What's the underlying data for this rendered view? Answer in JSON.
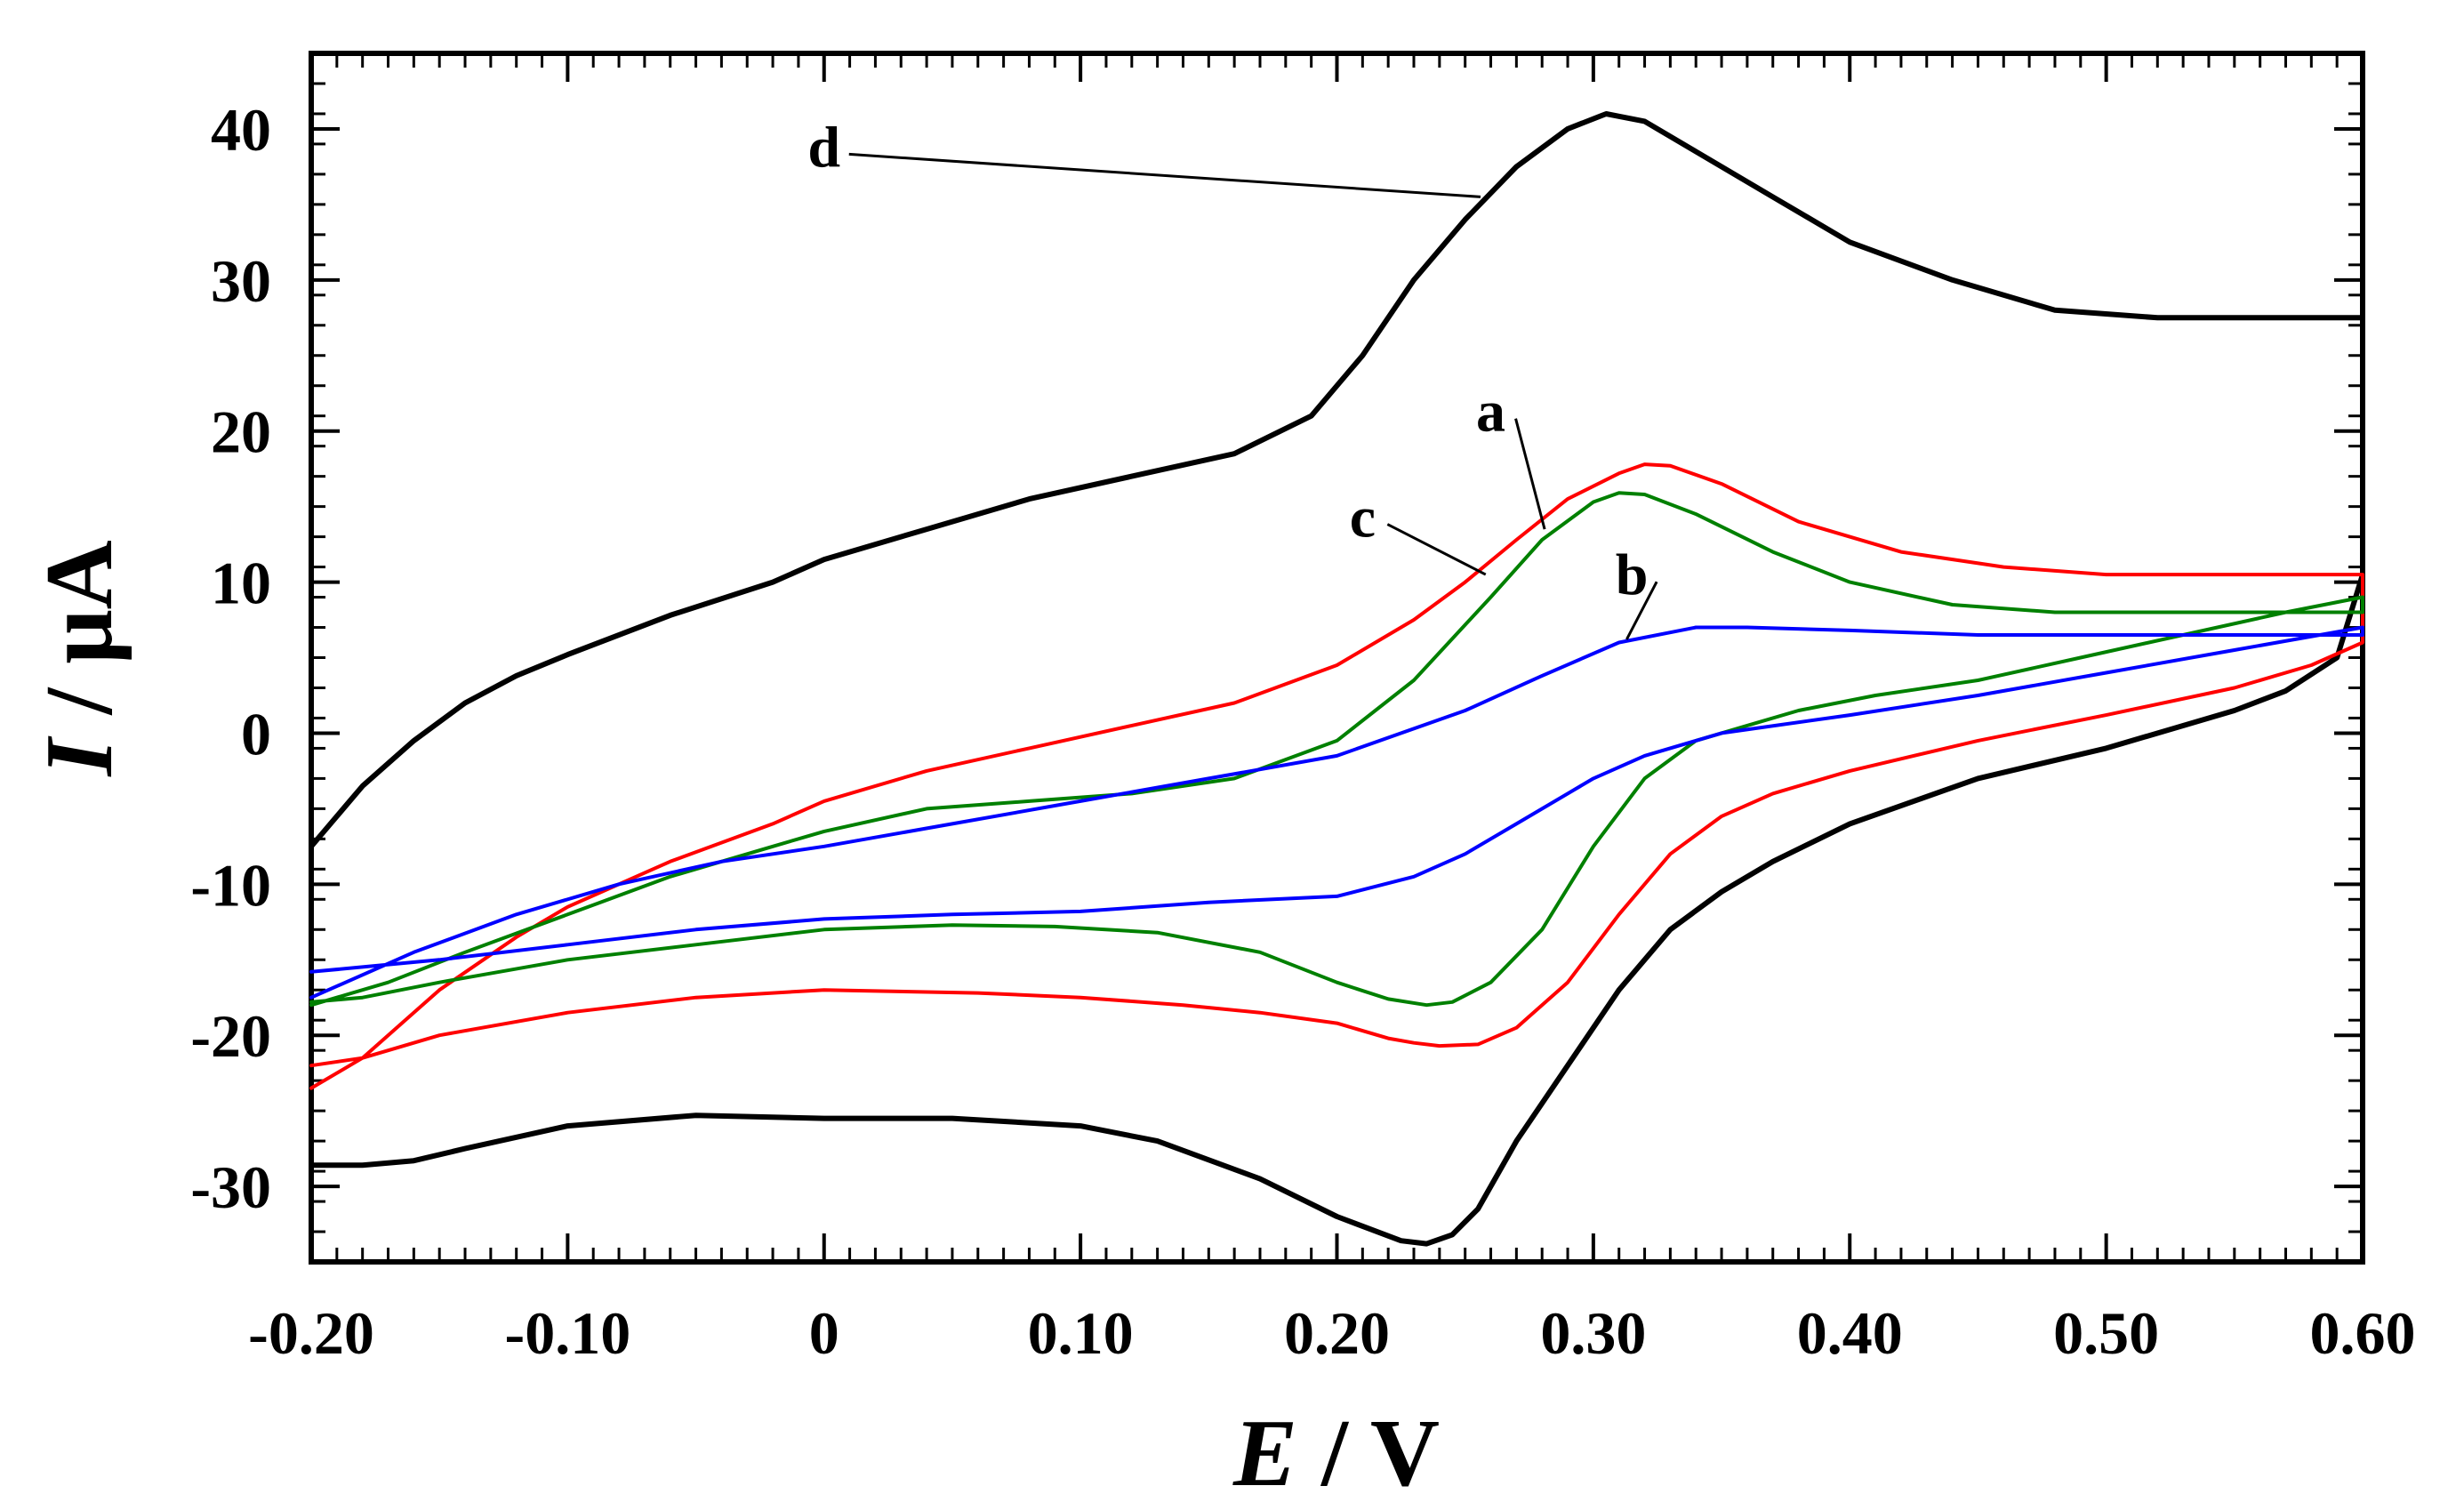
{
  "chart_data": {
    "type": "line",
    "title": "",
    "xlabel_var": "E",
    "xlabel_unit": " / V",
    "ylabel_var": "I",
    "ylabel_unit": " / μA",
    "xlim": [
      -0.2,
      0.6
    ],
    "ylim": [
      -35,
      45
    ],
    "xticks": [
      -0.2,
      -0.1,
      0,
      0.1,
      0.2,
      0.3,
      0.4,
      0.5,
      0.6
    ],
    "xtick_labels": [
      "-0.20",
      "-0.10",
      "0",
      "0.10",
      "0.20",
      "0.30",
      "0.40",
      "0.50",
      "0.60"
    ],
    "yticks": [
      -30,
      -20,
      -10,
      0,
      10,
      20,
      30,
      40
    ],
    "ytick_labels": [
      "-30",
      "-20",
      "-10",
      "0",
      "10",
      "20",
      "30",
      "40"
    ],
    "grid": false,
    "series": [
      {
        "name": "d",
        "color": "#000000",
        "x": [
          -0.2,
          -0.18,
          -0.16,
          -0.14,
          -0.12,
          -0.1,
          -0.06,
          -0.02,
          0,
          0.04,
          0.08,
          0.12,
          0.16,
          0.19,
          0.21,
          0.23,
          0.25,
          0.27,
          0.29,
          0.305,
          0.32,
          0.34,
          0.37,
          0.4,
          0.44,
          0.48,
          0.52,
          0.56,
          0.595,
          0.6,
          0.6,
          0.59,
          0.57,
          0.55,
          0.5,
          0.45,
          0.4,
          0.37,
          0.35,
          0.33,
          0.31,
          0.29,
          0.27,
          0.255,
          0.245,
          0.235,
          0.225,
          0.2,
          0.17,
          0.13,
          0.1,
          0.05,
          0,
          -0.05,
          -0.1,
          -0.14,
          -0.16,
          -0.18,
          -0.2
        ],
        "y": [
          -7.5,
          -3.5,
          -0.5,
          2.0,
          3.8,
          5.2,
          7.8,
          10.0,
          11.5,
          13.5,
          15.5,
          17.0,
          18.5,
          21.0,
          25.0,
          30.0,
          34.0,
          37.5,
          40.0,
          41.0,
          40.5,
          38.5,
          35.5,
          32.5,
          30.0,
          28.0,
          27.5,
          27.5,
          27.5,
          27.5,
          10.5,
          5.0,
          2.8,
          1.5,
          -1.0,
          -3.0,
          -6.0,
          -8.5,
          -10.5,
          -13.0,
          -17.0,
          -22.0,
          -27.0,
          -31.5,
          -33.2,
          -33.8,
          -33.6,
          -32.0,
          -29.5,
          -27.0,
          -26.0,
          -25.5,
          -25.5,
          -25.3,
          -26.0,
          -27.5,
          -28.3,
          -28.6,
          -28.6
        ]
      },
      {
        "name": "a",
        "color": "#ff0000",
        "x": [
          -0.2,
          -0.18,
          -0.15,
          -0.12,
          -0.1,
          -0.06,
          -0.02,
          0,
          0.04,
          0.08,
          0.12,
          0.16,
          0.2,
          0.23,
          0.25,
          0.27,
          0.29,
          0.31,
          0.32,
          0.33,
          0.35,
          0.38,
          0.42,
          0.46,
          0.5,
          0.55,
          0.595,
          0.6,
          0.6,
          0.58,
          0.55,
          0.5,
          0.45,
          0.4,
          0.37,
          0.35,
          0.33,
          0.31,
          0.29,
          0.27,
          0.255,
          0.24,
          0.23,
          0.22,
          0.2,
          0.17,
          0.14,
          0.1,
          0.06,
          0,
          -0.05,
          -0.1,
          -0.15,
          -0.18,
          -0.2
        ],
        "y": [
          -23.5,
          -21.5,
          -17.0,
          -13.5,
          -11.5,
          -8.5,
          -6.0,
          -4.5,
          -2.5,
          -1.0,
          0.5,
          2.0,
          4.5,
          7.5,
          10.0,
          12.8,
          15.5,
          17.2,
          17.8,
          17.7,
          16.5,
          14.0,
          12.0,
          11.0,
          10.5,
          10.5,
          10.5,
          10.5,
          6.0,
          4.5,
          3.0,
          1.2,
          -0.5,
          -2.5,
          -4.0,
          -5.5,
          -8.0,
          -12.0,
          -16.5,
          -19.5,
          -20.6,
          -20.7,
          -20.5,
          -20.2,
          -19.2,
          -18.5,
          -18.0,
          -17.5,
          -17.2,
          -17.0,
          -17.5,
          -18.5,
          -20.0,
          -21.5,
          -22.0
        ]
      },
      {
        "name": "c",
        "color": "#008000",
        "x": [
          -0.2,
          -0.17,
          -0.14,
          -0.1,
          -0.06,
          -0.02,
          0,
          0.04,
          0.08,
          0.12,
          0.16,
          0.2,
          0.23,
          0.26,
          0.28,
          0.3,
          0.31,
          0.32,
          0.34,
          0.37,
          0.4,
          0.44,
          0.48,
          0.52,
          0.56,
          0.595,
          0.6,
          0.6,
          0.57,
          0.53,
          0.49,
          0.45,
          0.41,
          0.38,
          0.36,
          0.34,
          0.32,
          0.3,
          0.28,
          0.26,
          0.245,
          0.235,
          0.22,
          0.2,
          0.17,
          0.13,
          0.09,
          0.05,
          0,
          -0.05,
          -0.1,
          -0.15,
          -0.18,
          -0.2
        ],
        "y": [
          -18.0,
          -16.5,
          -14.5,
          -12.0,
          -9.5,
          -7.5,
          -6.5,
          -5.0,
          -4.5,
          -4.0,
          -3.0,
          -0.5,
          3.5,
          9.0,
          12.8,
          15.3,
          15.9,
          15.8,
          14.5,
          12.0,
          10.0,
          8.5,
          8.0,
          8.0,
          8.0,
          8.0,
          8.0,
          9.0,
          8.0,
          6.5,
          5.0,
          3.5,
          2.5,
          1.5,
          0.5,
          -0.5,
          -3.0,
          -7.5,
          -13.0,
          -16.5,
          -17.8,
          -18.0,
          -17.6,
          -16.5,
          -14.5,
          -13.2,
          -12.8,
          -12.7,
          -13.0,
          -14.0,
          -15.0,
          -16.5,
          -17.5,
          -17.8
        ]
      },
      {
        "name": "b",
        "color": "#0000ff",
        "x": [
          -0.2,
          -0.16,
          -0.12,
          -0.08,
          -0.04,
          0,
          0.05,
          0.1,
          0.15,
          0.2,
          0.25,
          0.28,
          0.31,
          0.34,
          0.36,
          0.4,
          0.45,
          0.5,
          0.55,
          0.6,
          0.6,
          0.55,
          0.5,
          0.45,
          0.4,
          0.35,
          0.32,
          0.3,
          0.27,
          0.25,
          0.23,
          0.2,
          0.15,
          0.1,
          0.05,
          0,
          -0.05,
          -0.1,
          -0.15,
          -0.2
        ],
        "y": [
          -17.5,
          -14.5,
          -12.0,
          -10.0,
          -8.5,
          -7.5,
          -6.0,
          -4.5,
          -3.0,
          -1.5,
          1.5,
          3.8,
          6.0,
          7.0,
          7.0,
          6.8,
          6.5,
          6.5,
          6.5,
          6.5,
          7.0,
          5.5,
          4.0,
          2.5,
          1.2,
          0.0,
          -1.5,
          -3.0,
          -6.0,
          -8.0,
          -9.5,
          -10.8,
          -11.2,
          -11.8,
          -12.0,
          -12.3,
          -13.0,
          -14.0,
          -15.0,
          -15.8
        ]
      }
    ],
    "annotations": [
      {
        "text": "d",
        "label_x": -0.0,
        "label_y": 37.5,
        "target_x": 0.256,
        "target_y": 35.5
      },
      {
        "text": "a",
        "label_x": 0.26,
        "label_y": 20.0,
        "target_x": 0.281,
        "target_y": 13.5
      },
      {
        "text": "c",
        "label_x": 0.21,
        "label_y": 13.0,
        "target_x": 0.258,
        "target_y": 10.5
      },
      {
        "text": "b",
        "label_x": 0.315,
        "label_y": 9.2,
        "target_x": 0.313,
        "target_y": 6.2
      }
    ]
  }
}
